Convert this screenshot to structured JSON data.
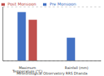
{
  "chart_data": {
    "type": "bar",
    "categories": [
      "Maximum Temperature (°C)",
      "Rainfall (mm)"
    ],
    "series": [
      {
        "name": "Pre Monsoon",
        "color": "#4472C4",
        "values": [
          38.0,
          18.0
        ]
      },
      {
        "name": "Post Monsoon",
        "color": "#C0504D",
        "values": [
          32.0,
          0.0
        ]
      }
    ],
    "xlabel": "Meteorological  Observatory RRS Dhanda",
    "ylim": [
      0,
      42
    ],
    "yticks": [
      0,
      5,
      10,
      15,
      20,
      25,
      30,
      35,
      40
    ],
    "grid": true,
    "legend": "upper left",
    "tick_labels": "x"
  }
}
